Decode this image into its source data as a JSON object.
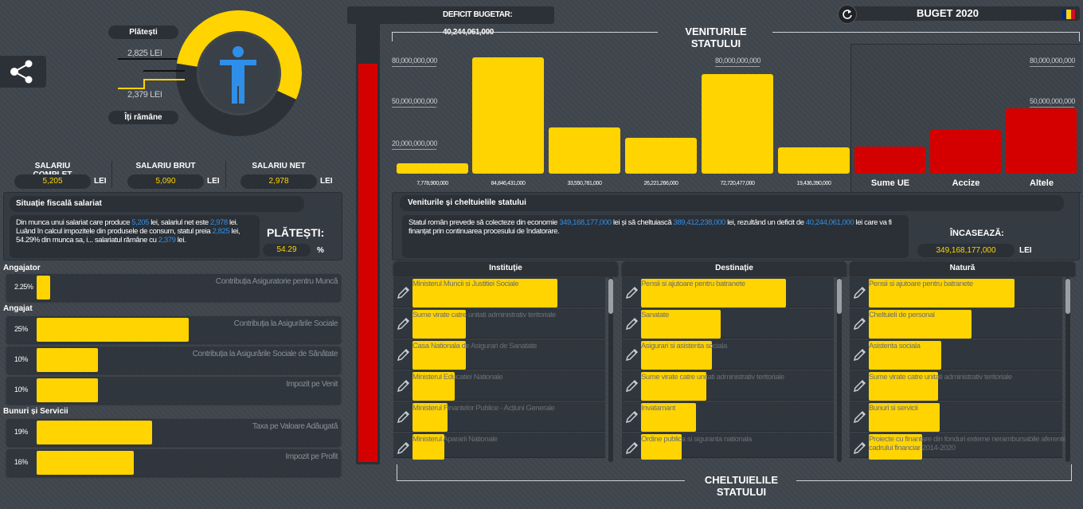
{
  "header": {
    "deficit_label": "DEFICIT BUGETAR:",
    "deficit_value": "40,244,061,000",
    "budget_title": "BUGET 2020"
  },
  "donut": {
    "pay_label": "Plătești",
    "pay_value": "2,825 LEI",
    "keep_value": "2,379 LEI",
    "keep_label": "Îți rămâne",
    "paid_fraction": 0.5429
  },
  "salary": {
    "complet_label": "SALARIU COMPLET",
    "complet_value": "5,205",
    "brut_label": "SALARIU BRUT",
    "brut_value": "5,090",
    "net_label": "SALARIU NET",
    "net_value": "2,978",
    "currency": "LEI"
  },
  "fiscal": {
    "title": "Situație fiscală salariat",
    "t1": "Din munca unui salariat care produce ",
    "v1": "5,205",
    "t2": " lei, salariul net este ",
    "v2": "2,978",
    "t3": " lei. Luând în calcul impozitele din produsele de consum, statul preia ",
    "v3": "2,825",
    "t4": " lei, 54.29% din munca sa, i... salariatul rămâne cu ",
    "v4": "2,379",
    "t5": " lei.",
    "pay_label": "PLĂTEȘTI:",
    "pay_pct": "54.29",
    "pct_sign": "%"
  },
  "contributions": {
    "employer_label": "Angajator",
    "employee_label": "Angajat",
    "goods_label": "Bunuri și Servicii",
    "rows": [
      {
        "pct": "2.25%",
        "label": "Contribuția Asiguratorie pentru Muncă",
        "value": 2.25
      },
      {
        "pct": "25%",
        "label": "Contribuția la Asigurările Sociale",
        "value": 25
      },
      {
        "pct": "10%",
        "label": "Contribuția la Asigurările Sociale de Sănătate",
        "value": 10
      },
      {
        "pct": "10%",
        "label": "Impozit pe Venit",
        "value": 10
      },
      {
        "pct": "19%",
        "label": "Taxa pe Valoare Adăugată",
        "value": 19
      },
      {
        "pct": "16%",
        "label": "Impozit pe Profit",
        "value": 16
      }
    ]
  },
  "revenues": {
    "title": "VENITURILE STATULUI",
    "footer_title": "CHELTUIELILE STATULUI"
  },
  "chart_data": {
    "type": "bar",
    "title": "VENITURILE STATULUI",
    "gridlines_left": [
      "80,000,000,000",
      "50,000,000,000",
      "20,000,000,000"
    ],
    "gridlines_mid": [
      "80,000,000,000"
    ],
    "gridlines_right": [
      "80,000,000,000",
      "50,000,000,000"
    ],
    "series": [
      {
        "name": "national",
        "values": [
          7778900000,
          84846431000,
          33550781000,
          26221266000,
          72720477000,
          19436390000
        ],
        "labels": [
          "7,778,900,000",
          "84,846,431,000",
          "33,550,781,000",
          "26,221,266,000",
          "72,720,477,000",
          "19,436,390,000"
        ]
      },
      {
        "name": "other",
        "categories": [
          "Sume UE",
          "Accize",
          "Altele"
        ],
        "values": [
          20000000000,
          32000000000,
          48000000000
        ]
      }
    ]
  },
  "expenses": {
    "title": "Veniturile și cheltuielile statului",
    "t1": "Statul român prevede să colecteze din economie ",
    "v1": "349,168,177,000",
    "t2": " lei și să cheltuiască ",
    "v2": "389,412,238,000",
    "t3": " lei, rezultând un deficit de ",
    "v3": "40,244,061,000",
    "t4": " lei care va fi finanțat prin continuarea procesului de îndatorare.",
    "collect_label": "ÎNCASEAZĂ:",
    "collect_value": "349,168,177,000",
    "currency": "LEI"
  },
  "table": {
    "columns": [
      {
        "header": "Instituție",
        "rows": [
          {
            "label": "Ministerul Muncii si Justitiei Sociale",
            "value": 0.82
          },
          {
            "label": "Sume virate catre unitati administrativ teritoriale",
            "value": 0.3
          },
          {
            "label": "Casa Nationala de Asigurari de Sanatate",
            "value": 0.3
          },
          {
            "label": "Ministerul Educatiei Nationale",
            "value": 0.24
          },
          {
            "label": "Ministerul Finantelor Publice - Acțiuni Generale",
            "value": 0.2
          },
          {
            "label": "Ministerul Apararii Nationale",
            "value": 0.18
          }
        ]
      },
      {
        "header": "Destinație",
        "rows": [
          {
            "label": "Pensii si ajutoare pentru batranete",
            "value": 0.82
          },
          {
            "label": "Sanatate",
            "value": 0.45
          },
          {
            "label": "Asigurari si asistenta sociala",
            "value": 0.4
          },
          {
            "label": "Sume virate catre unitati administrativ teritoriale",
            "value": 0.37
          },
          {
            "label": "Invatamant",
            "value": 0.31
          },
          {
            "label": "Ordine publica si siguranta nationala",
            "value": 0.23
          }
        ]
      },
      {
        "header": "Natură",
        "rows": [
          {
            "label": "Pensii si ajutoare pentru batranete",
            "value": 0.82
          },
          {
            "label": "Cheltuieli de personal",
            "value": 0.58
          },
          {
            "label": "Asistenta sociala",
            "value": 0.41
          },
          {
            "label": "Sume virate catre unitati administrativ teritoriale",
            "value": 0.39
          },
          {
            "label": "Bunuri si servicii",
            "value": 0.4
          },
          {
            "label": "Proiecte cu finantare din fonduri externe nerambursabile aferente cadrului financiar 2014-2020",
            "value": 0.3
          }
        ]
      }
    ]
  },
  "deficit_gauge": {
    "fraction": 0.91
  }
}
